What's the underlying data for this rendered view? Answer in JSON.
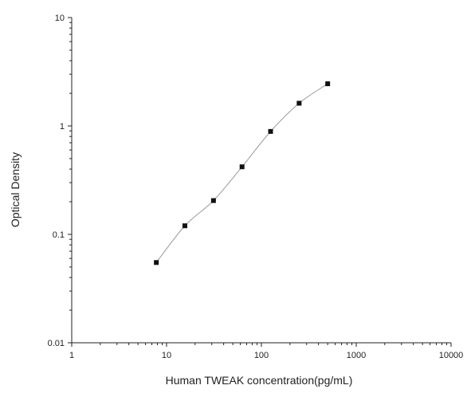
{
  "chart_data": {
    "type": "scatter",
    "xlabel": "Human TWEAK concentration(pg/mL)",
    "ylabel": "Optical Density",
    "xscale": "log",
    "yscale": "log",
    "xlim": [
      1,
      10000
    ],
    "ylim": [
      0.01,
      10
    ],
    "x_ticks": [
      "1",
      "10",
      "100",
      "1000",
      "10000"
    ],
    "y_ticks": [
      "0.01",
      "0.1",
      "1",
      "10"
    ],
    "grid": false,
    "series": [
      {
        "marker": "square",
        "x": [
          7.8,
          15.6,
          31.25,
          62.5,
          125,
          250,
          500
        ],
        "y": [
          0.055,
          0.12,
          0.205,
          0.42,
          0.89,
          1.62,
          2.45
        ]
      }
    ],
    "fit_line": true,
    "colors": {
      "marker": "#111111",
      "axis": "#222222",
      "fit": "#9a9a9a"
    }
  }
}
